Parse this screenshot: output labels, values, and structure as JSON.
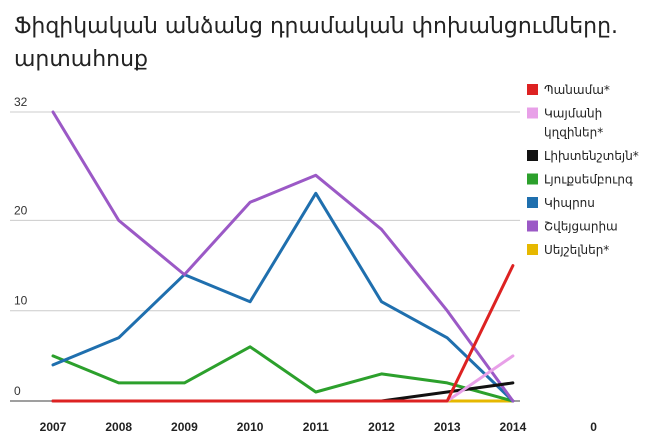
{
  "chart_data": {
    "type": "line",
    "title": "Ֆիզիկական անձանց դրամական փոխանցումները. արտահոսք",
    "x": [
      "2007",
      "2008",
      "2009",
      "2010",
      "2011",
      "2012",
      "2013",
      "2014"
    ],
    "extra_x_tick": "0",
    "y_ticks": [
      "0",
      "10",
      "20",
      "32"
    ],
    "y_tick_values": [
      0,
      10,
      20,
      32
    ],
    "ylim": [
      0,
      32
    ],
    "grid": "horizontal",
    "legend_position": "right",
    "series": [
      {
        "name": "Պանամա*",
        "color": "#dd2222",
        "values": [
          0,
          0,
          0,
          0,
          0,
          0,
          0,
          15
        ]
      },
      {
        "name": "Կայմանի կղզիներ*",
        "color": "#e8a0e8",
        "values": [
          0,
          0,
          0,
          0,
          0,
          0,
          0,
          5
        ]
      },
      {
        "name": "Լիխտենշտեյն*",
        "color": "#111111",
        "values": [
          0,
          0,
          0,
          0,
          0,
          0,
          1,
          2
        ]
      },
      {
        "name": "Լյուքսեմբուրգ",
        "color": "#2ca02c",
        "values": [
          5,
          2,
          2,
          6,
          1,
          3,
          2,
          0
        ]
      },
      {
        "name": "Կիպրոս",
        "color": "#1f6fae",
        "values": [
          4,
          7,
          14,
          11,
          23,
          11,
          7,
          0
        ]
      },
      {
        "name": "Շվեյցարիա",
        "color": "#9b59c6",
        "values": [
          32,
          20,
          14,
          22,
          25,
          19,
          10,
          0
        ]
      },
      {
        "name": "Սեյշելներ*",
        "color": "#e6b800",
        "values": [
          0,
          0,
          0,
          0,
          0,
          0,
          0,
          0
        ]
      }
    ]
  }
}
